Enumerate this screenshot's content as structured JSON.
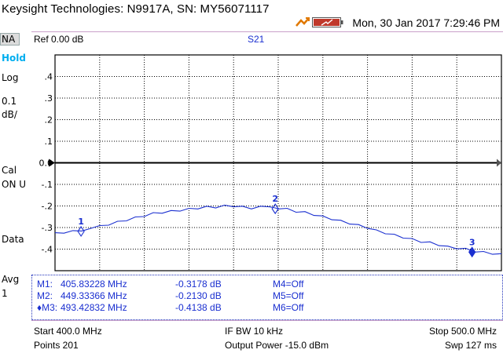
{
  "title": "Keysight Technologies: N9917A, SN: MY56071117",
  "datetime": "Mon, 30 Jan 2017 7:29:46 PM",
  "sidebar": {
    "mode": "NA",
    "hold": "Hold",
    "format": "Log",
    "scale_value": "0.1",
    "scale_unit": "dB/",
    "cal_label": "Cal",
    "cal_status": "ON U",
    "data": "Data",
    "avg_label": "Avg",
    "avg_value": "1"
  },
  "header": {
    "ref": "Ref 0.00 dB",
    "measurement": "S21"
  },
  "markers": [
    {
      "label": "M1:",
      "freq": "405.83228 MHz",
      "value": "-0.3178 dB",
      "other": "M4=Off"
    },
    {
      "label": "M2:",
      "freq": "449.33366 MHz",
      "value": "-0.2130 dB",
      "other": "M5=Off"
    },
    {
      "label": "♦M3:",
      "freq": "493.42832 MHz",
      "value": "-0.4138 dB",
      "other": "M6=Off"
    }
  ],
  "footer": {
    "start": "Start 400.0 MHz",
    "points": "Points 201",
    "ifbw": "IF BW 10 kHz",
    "power": "Output Power -15.0 dBm",
    "stop": "Stop 500.0 MHz",
    "sweep": "Swp 127 ms"
  },
  "colors": {
    "trace": "#1a2fd0",
    "hold": "#00aeef",
    "title": "#000000"
  },
  "chart_data": {
    "type": "line",
    "x_range_mhz": [
      400,
      500
    ],
    "ylim": [
      -0.5,
      0.5
    ],
    "grid": true,
    "y_ticks": [
      ".4",
      ".3",
      ".2",
      ".1",
      "0.0",
      "-.1",
      "-.2",
      "-.3",
      "-.4"
    ],
    "reference_level": "0.0",
    "series": [
      {
        "x": [
          400,
          402,
          404,
          406,
          408,
          410,
          412,
          414,
          416,
          418,
          420,
          422,
          424,
          426,
          428,
          430,
          432,
          434,
          436,
          438,
          440,
          442,
          444,
          446,
          448,
          449.33,
          450,
          452,
          454,
          456,
          458,
          460,
          462,
          464,
          466,
          468,
          470,
          472,
          474,
          476,
          478,
          480,
          482,
          484,
          486,
          488,
          490,
          492,
          494,
          496,
          498,
          500
        ],
        "y": [
          -0.32,
          -0.33,
          -0.31,
          -0.32,
          -0.3,
          -0.295,
          -0.285,
          -0.275,
          -0.265,
          -0.255,
          -0.245,
          -0.235,
          -0.23,
          -0.225,
          -0.22,
          -0.215,
          -0.21,
          -0.205,
          -0.205,
          -0.2,
          -0.2,
          -0.205,
          -0.21,
          -0.205,
          -0.2,
          -0.213,
          -0.21,
          -0.215,
          -0.225,
          -0.23,
          -0.24,
          -0.25,
          -0.26,
          -0.27,
          -0.28,
          -0.29,
          -0.3,
          -0.315,
          -0.325,
          -0.335,
          -0.345,
          -0.355,
          -0.365,
          -0.37,
          -0.38,
          -0.39,
          -0.395,
          -0.4,
          -0.41,
          -0.415,
          -0.42,
          -0.425
        ]
      }
    ],
    "markers": [
      {
        "name": "1",
        "x": 405.83,
        "y": -0.3178
      },
      {
        "name": "2",
        "x": 449.33,
        "y": -0.213
      },
      {
        "name": "3",
        "x": 493.43,
        "y": -0.4138
      }
    ]
  }
}
